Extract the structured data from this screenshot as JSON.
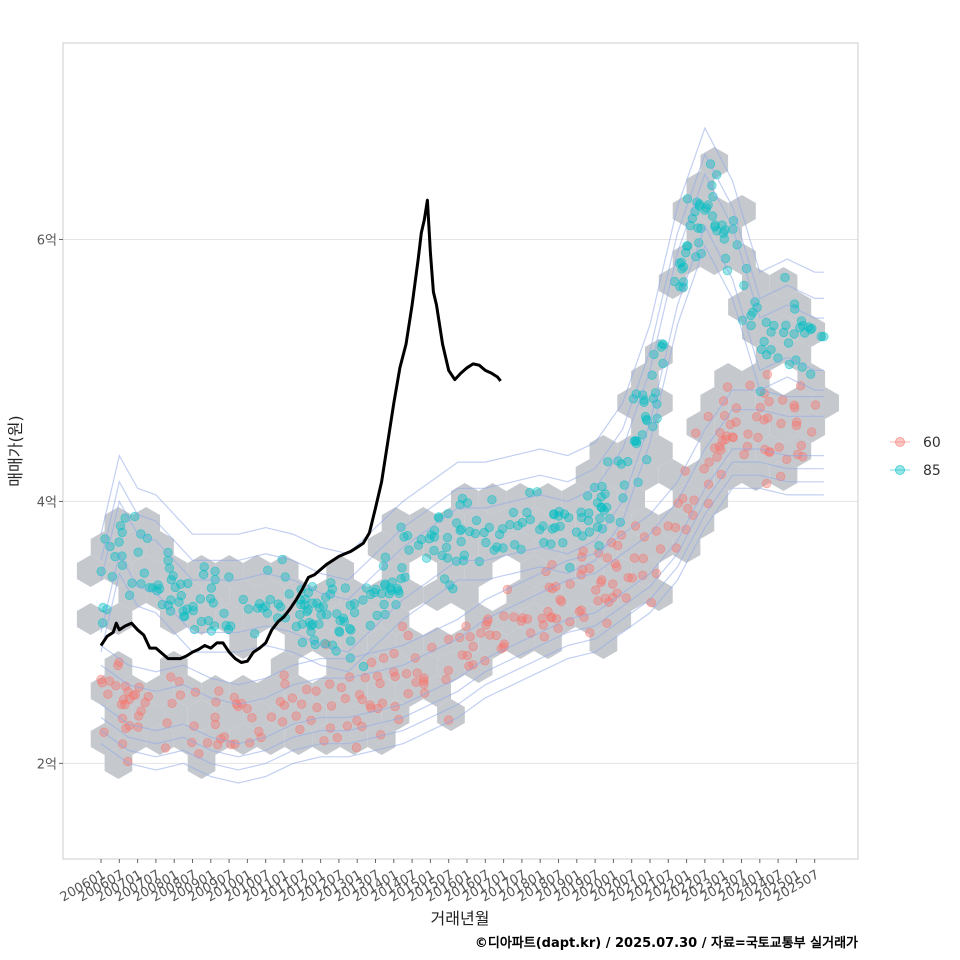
{
  "chart_data": {
    "type": "scatter",
    "xlabel": "거래년월",
    "ylabel": "매매가(원)",
    "caption": "©디아파트(dapt.kr) / 2025.07.30 / 자료=국토교통부 실거래가",
    "x_ticks": [
      "200601",
      "200607",
      "200701",
      "200707",
      "200801",
      "200807",
      "200901",
      "200907",
      "201001",
      "201007",
      "201101",
      "201107",
      "201201",
      "201207",
      "201301",
      "201307",
      "201401",
      "201407",
      "201501",
      "201507",
      "201601",
      "201607",
      "201701",
      "201707",
      "201801",
      "201807",
      "201901",
      "201907",
      "202001",
      "202007",
      "202101",
      "202107",
      "202201",
      "202207",
      "202301",
      "202307",
      "202401",
      "202407",
      "202501",
      "202507"
    ],
    "y_ticks": [
      {
        "value": 2,
        "label": "2억"
      },
      {
        "value": 4,
        "label": "4억"
      },
      {
        "value": 6,
        "label": "6억"
      }
    ],
    "ylim": [
      1.27,
      7.5
    ],
    "grid": true,
    "legend_position": "right",
    "colors": {
      "s60": "#F8766D",
      "s85": "#00BFC4",
      "line": "#000000",
      "hex": "#C2C6CB",
      "contour": "#8FA8E8",
      "border": "#CCCCCC",
      "grid": "#E5E5E5"
    },
    "series": [
      {
        "name": "60",
        "kind": "points",
        "anchors": [
          [
            0,
            2.6
          ],
          [
            3,
            2.45
          ],
          [
            6,
            2.4
          ],
          [
            9,
            2.45
          ],
          [
            12,
            2.35
          ],
          [
            15,
            2.3
          ],
          [
            18,
            2.35
          ],
          [
            21,
            2.45
          ],
          [
            24,
            2.5
          ],
          [
            27,
            2.5
          ],
          [
            30,
            2.55
          ],
          [
            33,
            2.6
          ],
          [
            36,
            2.7
          ],
          [
            39,
            2.8
          ],
          [
            42,
            2.95
          ],
          [
            45,
            3.05
          ],
          [
            48,
            3.15
          ],
          [
            51,
            3.25
          ],
          [
            54,
            3.3
          ],
          [
            57,
            3.45
          ],
          [
            60,
            3.6
          ],
          [
            63,
            3.85
          ],
          [
            66,
            4.25
          ],
          [
            69,
            4.55
          ],
          [
            72,
            4.55
          ],
          [
            75,
            4.5
          ],
          [
            78,
            4.5
          ]
        ],
        "count": 260
      },
      {
        "name": "85",
        "kind": "points",
        "anchors": [
          [
            0,
            3.2
          ],
          [
            2,
            3.8
          ],
          [
            4,
            3.55
          ],
          [
            6,
            3.5
          ],
          [
            8,
            3.35
          ],
          [
            10,
            3.2
          ],
          [
            12,
            3.2
          ],
          [
            15,
            3.2
          ],
          [
            18,
            3.25
          ],
          [
            21,
            3.2
          ],
          [
            24,
            3.1
          ],
          [
            27,
            3.05
          ],
          [
            30,
            3.25
          ],
          [
            33,
            3.45
          ],
          [
            36,
            3.6
          ],
          [
            39,
            3.75
          ],
          [
            42,
            3.75
          ],
          [
            45,
            3.8
          ],
          [
            48,
            3.85
          ],
          [
            51,
            3.8
          ],
          [
            54,
            3.9
          ],
          [
            57,
            4.2
          ],
          [
            60,
            4.8
          ],
          [
            63,
            5.7
          ],
          [
            66,
            6.3
          ],
          [
            69,
            5.9
          ],
          [
            72,
            5.2
          ],
          [
            75,
            5.3
          ],
          [
            78,
            5.2
          ]
        ],
        "count": 360
      },
      {
        "name": "",
        "kind": "line",
        "points": [
          [
            0,
            2.9
          ],
          [
            2,
            2.97
          ],
          [
            4,
            3.0
          ],
          [
            5,
            3.07
          ],
          [
            6,
            3.02
          ],
          [
            8,
            3.05
          ],
          [
            10,
            3.07
          ],
          [
            12,
            3.02
          ],
          [
            14,
            2.98
          ],
          [
            16,
            2.88
          ],
          [
            18,
            2.88
          ],
          [
            20,
            2.84
          ],
          [
            22,
            2.8
          ],
          [
            24,
            2.8
          ],
          [
            26,
            2.8
          ],
          [
            28,
            2.82
          ],
          [
            30,
            2.85
          ],
          [
            32,
            2.87
          ],
          [
            34,
            2.9
          ],
          [
            36,
            2.88
          ],
          [
            38,
            2.92
          ],
          [
            40,
            2.92
          ],
          [
            42,
            2.85
          ],
          [
            44,
            2.8
          ],
          [
            46,
            2.77
          ],
          [
            48,
            2.78
          ],
          [
            50,
            2.85
          ],
          [
            52,
            2.88
          ],
          [
            54,
            2.92
          ],
          [
            56,
            3.02
          ],
          [
            58,
            3.08
          ],
          [
            60,
            3.12
          ],
          [
            62,
            3.18
          ],
          [
            64,
            3.25
          ],
          [
            66,
            3.33
          ],
          [
            68,
            3.42
          ],
          [
            70,
            3.44
          ],
          [
            72,
            3.48
          ],
          [
            74,
            3.52
          ],
          [
            76,
            3.55
          ],
          [
            78,
            3.58
          ],
          [
            80,
            3.6
          ],
          [
            82,
            3.62
          ],
          [
            84,
            3.65
          ],
          [
            86,
            3.68
          ],
          [
            88,
            3.76
          ],
          [
            90,
            3.95
          ],
          [
            92,
            4.15
          ],
          [
            94,
            4.45
          ],
          [
            96,
            4.75
          ],
          [
            98,
            5.02
          ],
          [
            100,
            5.2
          ],
          [
            102,
            5.5
          ],
          [
            104,
            5.85
          ],
          [
            105,
            6.05
          ],
          [
            106,
            6.15
          ],
          [
            107,
            6.3
          ],
          [
            108,
            5.9
          ],
          [
            109,
            5.6
          ],
          [
            110,
            5.5
          ],
          [
            112,
            5.2
          ],
          [
            114,
            5.0
          ],
          [
            116,
            4.93
          ],
          [
            118,
            4.98
          ],
          [
            120,
            5.02
          ],
          [
            122,
            5.05
          ],
          [
            124,
            5.04
          ],
          [
            126,
            5.0
          ],
          [
            128,
            4.98
          ],
          [
            130,
            4.95
          ],
          [
            131,
            4.92
          ]
        ]
      }
    ],
    "density_contours": true,
    "hexbin": true
  }
}
